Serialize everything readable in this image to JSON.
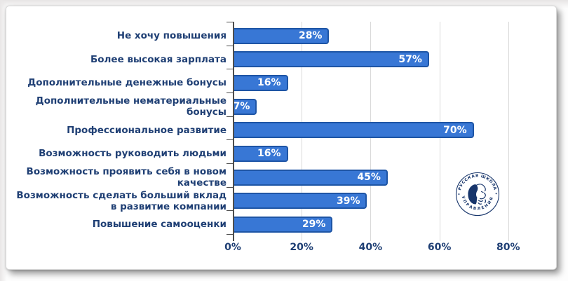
{
  "chart_data": {
    "type": "bar",
    "orientation": "horizontal",
    "title": "",
    "categories": [
      "Не хочу повышения",
      "Более высокая зарплата",
      "Дополнительные денежные бонусы",
      "Дополнительные нематериальные\nбонусы",
      "Профессиональное развитие",
      "Возможность руководить людьми",
      "Возможность проявить себя в новом\nкачестве",
      "Возможность сделать больший вклад\nв развитие компании",
      "Повышение самооценки"
    ],
    "values": [
      28,
      57,
      16,
      7,
      70,
      16,
      45,
      39,
      29
    ],
    "value_labels": [
      "28%",
      "57%",
      "16%",
      "7%",
      "70%",
      "16%",
      "45%",
      "39%",
      "29%"
    ],
    "x_tick_values": [
      0,
      20,
      40,
      60,
      80
    ],
    "x_tick_labels": [
      "0%",
      "20%",
      "40%",
      "60%",
      "80%"
    ],
    "xlim": [
      0,
      91
    ],
    "grid": true,
    "legend": false,
    "colors": {
      "bar_fill": "#3877d5",
      "bar_border": "#1e55a5",
      "bar_value_text": "#ffffff",
      "category_text": "#1f3f74",
      "tick_text": "#1f3f74",
      "gridline": "#d9d9d9",
      "axis_line": "#4d4d4d"
    }
  },
  "logo": {
    "name": "Русская школа управления",
    "arc_top_text": "• РУССКАЯ ШКОЛА •",
    "arc_bottom_text": "УПРАВЛЕНИЯ",
    "color": "#17356b"
  }
}
